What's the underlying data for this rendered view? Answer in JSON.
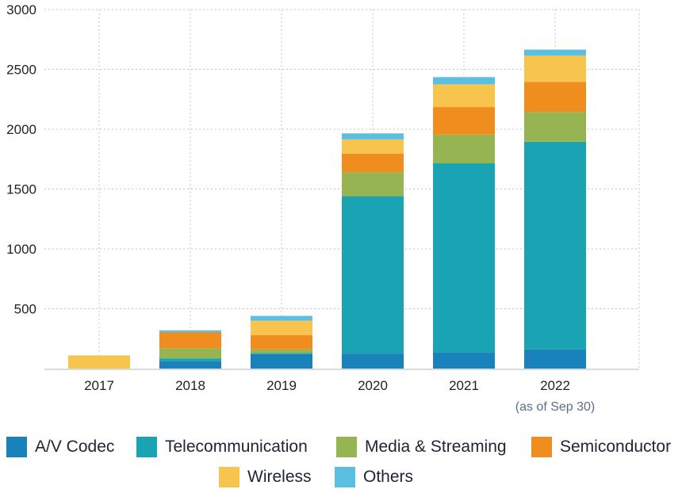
{
  "chart_data": {
    "type": "bar",
    "stacked": true,
    "categories": [
      "2017",
      "2018",
      "2019",
      "2020",
      "2021",
      "2022"
    ],
    "category_sublabels": [
      "",
      "",
      "",
      "",
      "",
      "(as of Sep 30)"
    ],
    "ylim": [
      0,
      3000
    ],
    "yticks": [
      500,
      1000,
      1500,
      2000,
      2500,
      3000
    ],
    "grid": true,
    "legend_position": "bottom",
    "series": [
      {
        "name": "A/V Codec",
        "color": "#1a82ba",
        "values": [
          0,
          60,
          120,
          125,
          135,
          160
        ]
      },
      {
        "name": "Telecommunication",
        "color": "#1aa3b3",
        "values": [
          0,
          25,
          10,
          1315,
          1580,
          1735
        ]
      },
      {
        "name": "Media & Streaming",
        "color": "#96b552",
        "values": [
          0,
          85,
          30,
          200,
          240,
          250
        ]
      },
      {
        "name": "Semiconductor",
        "color": "#ef8e1e",
        "values": [
          0,
          135,
          120,
          155,
          230,
          250
        ]
      },
      {
        "name": "Wireless",
        "color": "#f7c54e",
        "values": [
          110,
          0,
          120,
          120,
          190,
          220
        ]
      },
      {
        "name": "Others",
        "color": "#5abfe0",
        "values": [
          0,
          15,
          40,
          50,
          60,
          50
        ]
      }
    ]
  }
}
